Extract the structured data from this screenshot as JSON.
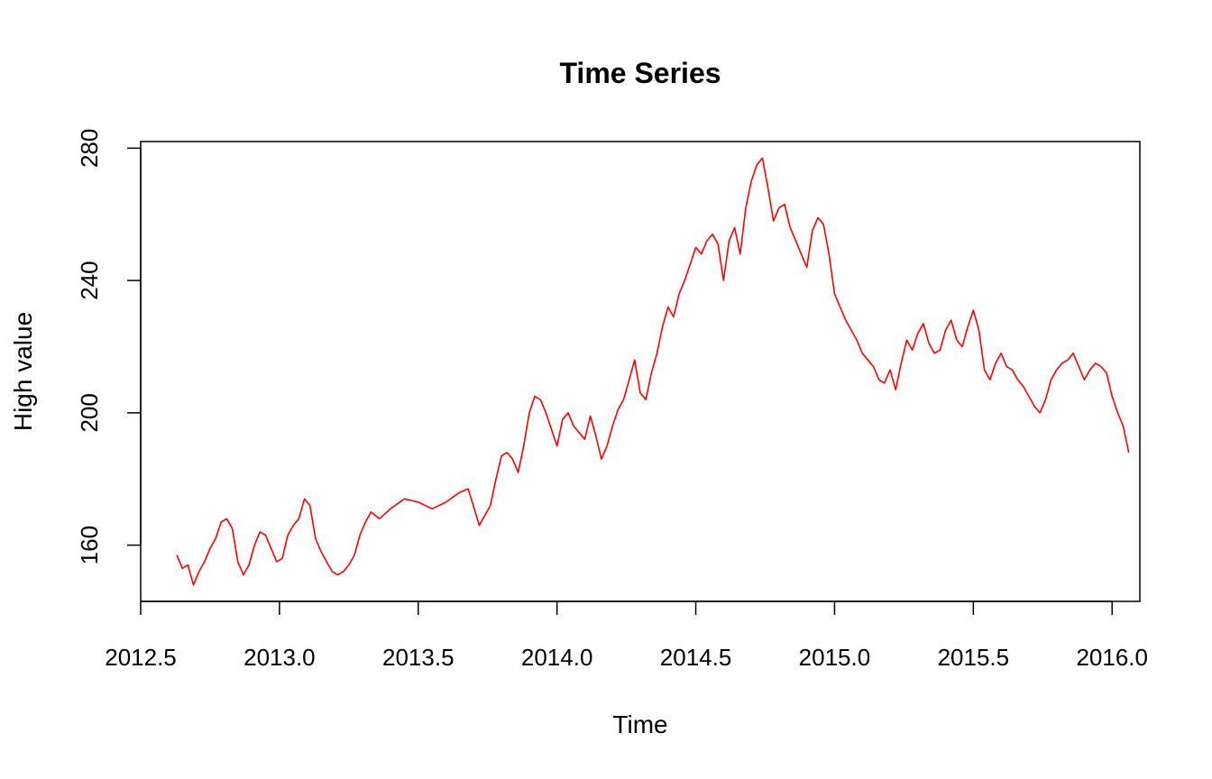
{
  "chart_data": {
    "type": "line",
    "title": "Time Series",
    "xlabel": "Time",
    "ylabel": "High value",
    "xlim": [
      2012.5,
      2016.1
    ],
    "ylim": [
      143,
      282
    ],
    "x_ticks": [
      2012.5,
      2013.0,
      2013.5,
      2014.0,
      2014.5,
      2015.0,
      2015.5,
      2016.0
    ],
    "x_tick_labels": [
      "2012.5",
      "2013.0",
      "2013.5",
      "2014.0",
      "2014.5",
      "2015.0",
      "2015.5",
      "2016.0"
    ],
    "y_ticks": [
      160,
      200,
      240,
      280
    ],
    "y_tick_labels": [
      "160",
      "200",
      "240",
      "280"
    ],
    "grid": false,
    "line_color": "#ff0000",
    "series": [
      {
        "x": [
          2012.63,
          2012.65,
          2012.67,
          2012.69,
          2012.71,
          2012.73,
          2012.75,
          2012.77,
          2012.79,
          2012.81,
          2012.83,
          2012.85,
          2012.87,
          2012.89,
          2012.91,
          2012.93,
          2012.95,
          2012.97,
          2012.99,
          2013.01,
          2013.03,
          2013.05,
          2013.07,
          2013.09,
          2013.11,
          2013.13,
          2013.15,
          2013.17,
          2013.19,
          2013.21,
          2013.23,
          2013.25,
          2013.27,
          2013.29,
          2013.31,
          2013.33,
          2013.36,
          2013.4,
          2013.45,
          2013.5,
          2013.55,
          2013.6,
          2013.65,
          2013.68,
          2013.72,
          2013.74,
          2013.76,
          2013.78,
          2013.8,
          2013.82,
          2013.84,
          2013.86,
          2013.88,
          2013.9,
          2013.92,
          2013.94,
          2013.96,
          2013.98,
          2014.0,
          2014.02,
          2014.04,
          2014.06,
          2014.08,
          2014.1,
          2014.12,
          2014.14,
          2014.16,
          2014.18,
          2014.2,
          2014.22,
          2014.24,
          2014.26,
          2014.28,
          2014.3,
          2014.32,
          2014.34,
          2014.36,
          2014.38,
          2014.4,
          2014.42,
          2014.44,
          2014.46,
          2014.48,
          2014.5,
          2014.52,
          2014.54,
          2014.56,
          2014.58,
          2014.6,
          2014.62,
          2014.64,
          2014.66,
          2014.68,
          2014.7,
          2014.72,
          2014.74,
          2014.76,
          2014.78,
          2014.8,
          2014.82,
          2014.84,
          2014.86,
          2014.88,
          2014.9,
          2014.92,
          2014.94,
          2014.96,
          2014.98,
          2015.0,
          2015.02,
          2015.04,
          2015.06,
          2015.08,
          2015.1,
          2015.12,
          2015.14,
          2015.16,
          2015.18,
          2015.2,
          2015.22,
          2015.24,
          2015.26,
          2015.28,
          2015.3,
          2015.32,
          2015.34,
          2015.36,
          2015.38,
          2015.4,
          2015.42,
          2015.44,
          2015.46,
          2015.48,
          2015.5,
          2015.52,
          2015.54,
          2015.56,
          2015.58,
          2015.6,
          2015.62,
          2015.64,
          2015.66,
          2015.68,
          2015.7,
          2015.72,
          2015.74,
          2015.76,
          2015.78,
          2015.8,
          2015.82,
          2015.84,
          2015.86,
          2015.88,
          2015.9,
          2015.92,
          2015.94,
          2015.96,
          2015.98,
          2016.0,
          2016.02,
          2016.04,
          2016.06
        ],
        "values": [
          157,
          153,
          154,
          148,
          152,
          155,
          159,
          162,
          167,
          168,
          165,
          155,
          151,
          154,
          160,
          164,
          163,
          159,
          155,
          156,
          163,
          166,
          168,
          174,
          172,
          162,
          158,
          155,
          152,
          151,
          152,
          154,
          157,
          163,
          167,
          170,
          168,
          171,
          174,
          173,
          171,
          173,
          176,
          177,
          166,
          169,
          172,
          180,
          187,
          188,
          186,
          182,
          190,
          200,
          205,
          204,
          200,
          195,
          190,
          198,
          200,
          196,
          194,
          192,
          199,
          193,
          186,
          190,
          196,
          201,
          204,
          210,
          216,
          206,
          204,
          212,
          218,
          226,
          232,
          229,
          236,
          240,
          245,
          250,
          248,
          252,
          254,
          251,
          240,
          252,
          256,
          248,
          262,
          270,
          275,
          277,
          268,
          258,
          262,
          263,
          256,
          252,
          248,
          244,
          255,
          259,
          257,
          248,
          236,
          232,
          228,
          225,
          222,
          218,
          216,
          214,
          210,
          209,
          213,
          207,
          215,
          222,
          219,
          224,
          227,
          221,
          218,
          219,
          225,
          228,
          222,
          220,
          226,
          231,
          225,
          213,
          210,
          215,
          218,
          214,
          213,
          210,
          208,
          205,
          202,
          200,
          204,
          210,
          213,
          215,
          216,
          218,
          214,
          210,
          213,
          215,
          214,
          212,
          205,
          200,
          196,
          188
        ]
      }
    ]
  }
}
